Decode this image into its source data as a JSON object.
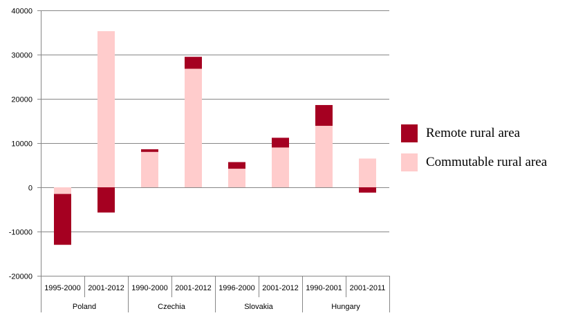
{
  "chart_data": {
    "type": "bar",
    "stacked": true,
    "title": "",
    "xlabel": "",
    "ylabel": "",
    "ylim": [
      -20000,
      40000
    ],
    "yticks": [
      -20000,
      -10000,
      0,
      10000,
      20000,
      30000,
      40000
    ],
    "grid": true,
    "legend_position": "right",
    "groups": [
      {
        "label": "Poland",
        "categories": [
          "1995-2000",
          "2001-2012"
        ]
      },
      {
        "label": "Czechia",
        "categories": [
          "1990-2000",
          "2001-2012"
        ]
      },
      {
        "label": "Slovakia",
        "categories": [
          "1996-2000",
          "2001-2012"
        ]
      },
      {
        "label": "Hungary",
        "categories": [
          "1990-2001",
          "2001-2011"
        ]
      }
    ],
    "categories": [
      "1995-2000",
      "2001-2012",
      "1990-2000",
      "2001-2012",
      "1996-2000",
      "2001-2012",
      "1990-2001",
      "2001-2011"
    ],
    "series": [
      {
        "name": "Commutable rural area",
        "color": "#ffcccc",
        "values": [
          -1500,
          35300,
          8000,
          26800,
          4200,
          9000,
          13900,
          6500
        ]
      },
      {
        "name": "Remote rural area",
        "color": "#a50021",
        "values": [
          -11500,
          -5700,
          600,
          2700,
          1500,
          2200,
          4700,
          -1200
        ]
      }
    ]
  }
}
